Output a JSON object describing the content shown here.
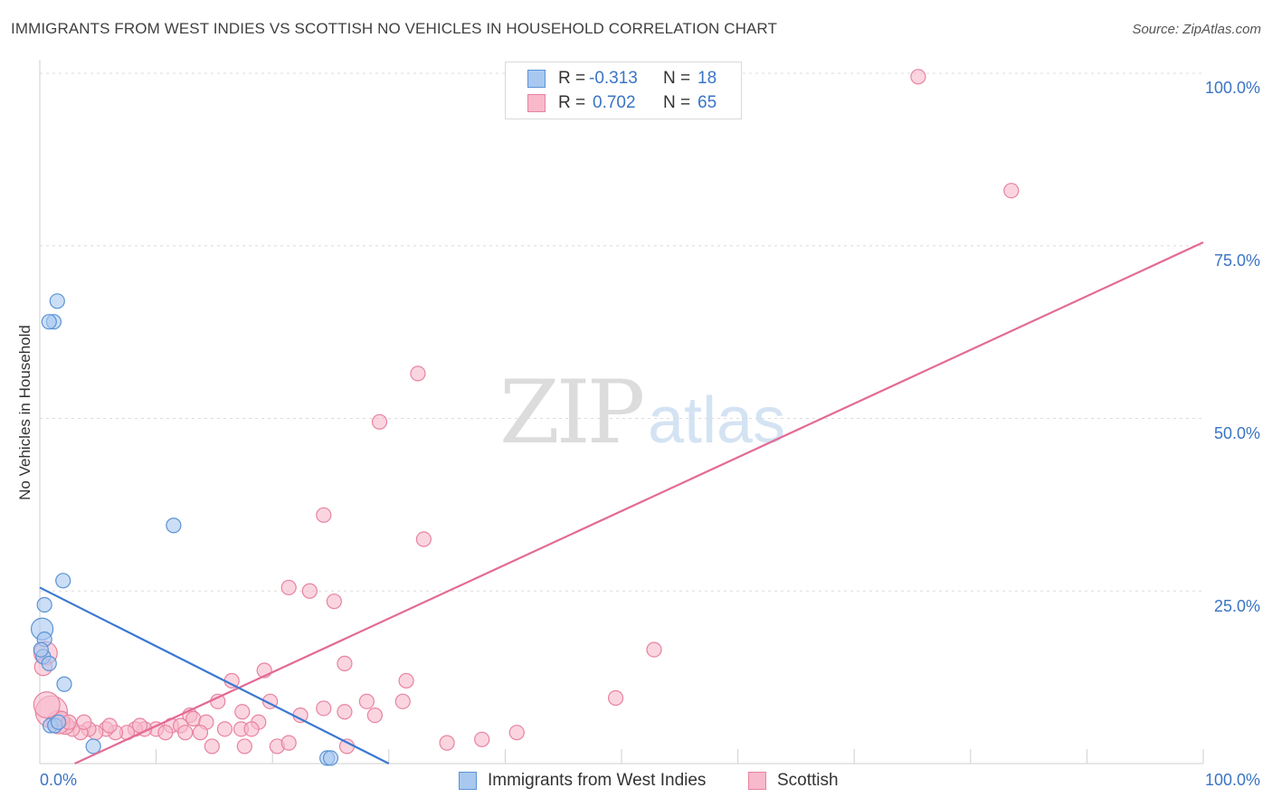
{
  "title": "IMMIGRANTS FROM WEST INDIES VS SCOTTISH NO VEHICLES IN HOUSEHOLD CORRELATION CHART",
  "source": "Source: ZipAtlas.com",
  "watermark": {
    "zip": "ZIP",
    "atlas": "atlas"
  },
  "colors": {
    "blue_fill": "#a8c8f0",
    "blue_stroke": "#5b93d6",
    "blue_line": "#3a78d0",
    "pink_fill": "#f7b9cb",
    "pink_stroke": "#e8829f",
    "pink_line": "#e36a95",
    "grid": "#dcdcdc",
    "axis_text": "#3a74c4"
  },
  "legend_top": {
    "rows": [
      {
        "r_label": "R =",
        "r_value": "-0.313",
        "n_label": "N =",
        "n_value": "18"
      },
      {
        "r_label": "R =",
        "r_value": "0.702",
        "n_label": "N =",
        "n_value": "65"
      }
    ]
  },
  "legend_bottom": [
    "Immigrants from West Indies",
    "Scottish"
  ],
  "chart_data": {
    "type": "scatter",
    "title": "IMMIGRANTS FROM WEST INDIES VS SCOTTISH NO VEHICLES IN HOUSEHOLD CORRELATION CHART",
    "xlabel": "",
    "ylabel": "No Vehicles in Household",
    "xlim": [
      0,
      100
    ],
    "ylim": [
      0,
      100
    ],
    "x_tick_labels": [
      "0.0%",
      "100.0%"
    ],
    "y_tick_labels": [
      "100.0%",
      "75.0%",
      "50.0%",
      "25.0%"
    ],
    "y_tick_values": [
      100,
      75,
      50,
      25
    ],
    "series": [
      {
        "name": "Immigrants from West Indies",
        "r": -0.313,
        "n": 18,
        "trend": {
          "x": [
            0,
            30
          ],
          "y": [
            25.5,
            0
          ]
        },
        "points": [
          {
            "x": 1.5,
            "y": 67,
            "s": 1
          },
          {
            "x": 1.2,
            "y": 64,
            "s": 1
          },
          {
            "x": 0.8,
            "y": 64,
            "s": 1
          },
          {
            "x": 11.5,
            "y": 34.5,
            "s": 1
          },
          {
            "x": 2.0,
            "y": 26.5,
            "s": 1
          },
          {
            "x": 0.4,
            "y": 23,
            "s": 1
          },
          {
            "x": 0.2,
            "y": 19.5,
            "s": 1.5
          },
          {
            "x": 0.4,
            "y": 18,
            "s": 1
          },
          {
            "x": 0.3,
            "y": 15.5,
            "s": 1
          },
          {
            "x": 0.8,
            "y": 14.5,
            "s": 1
          },
          {
            "x": 2.1,
            "y": 11.5,
            "s": 1
          },
          {
            "x": 0.9,
            "y": 5.5,
            "s": 1
          },
          {
            "x": 1.3,
            "y": 5.5,
            "s": 1
          },
          {
            "x": 1.6,
            "y": 6.0,
            "s": 1
          },
          {
            "x": 4.6,
            "y": 2.5,
            "s": 1
          },
          {
            "x": 24.7,
            "y": 0.8,
            "s": 1
          },
          {
            "x": 25.0,
            "y": 0.8,
            "s": 1
          },
          {
            "x": 0.1,
            "y": 16.5,
            "s": 1
          }
        ]
      },
      {
        "name": "Scottish",
        "r": 0.702,
        "n": 65,
        "trend": {
          "x": [
            3,
            100
          ],
          "y": [
            0,
            75.5
          ]
        },
        "points": [
          {
            "x": 75.5,
            "y": 99.5,
            "s": 1
          },
          {
            "x": 83.5,
            "y": 83,
            "s": 1
          },
          {
            "x": 32.5,
            "y": 56.5,
            "s": 1
          },
          {
            "x": 29.2,
            "y": 49.5,
            "s": 1
          },
          {
            "x": 24.4,
            "y": 36,
            "s": 1
          },
          {
            "x": 33,
            "y": 32.5,
            "s": 1
          },
          {
            "x": 21.4,
            "y": 25.5,
            "s": 1
          },
          {
            "x": 23.2,
            "y": 25,
            "s": 1
          },
          {
            "x": 25.3,
            "y": 23.5,
            "s": 1
          },
          {
            "x": 52.8,
            "y": 16.5,
            "s": 1
          },
          {
            "x": 26.2,
            "y": 14.5,
            "s": 1
          },
          {
            "x": 19.3,
            "y": 13.5,
            "s": 1
          },
          {
            "x": 16.5,
            "y": 12,
            "s": 1
          },
          {
            "x": 31.5,
            "y": 12,
            "s": 1
          },
          {
            "x": 49.5,
            "y": 9.5,
            "s": 1
          },
          {
            "x": 15.3,
            "y": 9,
            "s": 1
          },
          {
            "x": 19.8,
            "y": 9,
            "s": 1
          },
          {
            "x": 28.1,
            "y": 9,
            "s": 1
          },
          {
            "x": 31.2,
            "y": 9,
            "s": 1
          },
          {
            "x": 24.4,
            "y": 8,
            "s": 1
          },
          {
            "x": 26.2,
            "y": 7.5,
            "s": 1
          },
          {
            "x": 17.4,
            "y": 7.5,
            "s": 1
          },
          {
            "x": 22.4,
            "y": 7,
            "s": 1
          },
          {
            "x": 28.8,
            "y": 7,
            "s": 1
          },
          {
            "x": 12.9,
            "y": 7,
            "s": 1
          },
          {
            "x": 13.2,
            "y": 6.5,
            "s": 1
          },
          {
            "x": 14.3,
            "y": 6,
            "s": 1
          },
          {
            "x": 18.8,
            "y": 6,
            "s": 1
          },
          {
            "x": 11.3,
            "y": 5.5,
            "s": 1
          },
          {
            "x": 12.1,
            "y": 5.5,
            "s": 1
          },
          {
            "x": 15.9,
            "y": 5,
            "s": 1
          },
          {
            "x": 17.3,
            "y": 5,
            "s": 1
          },
          {
            "x": 18.2,
            "y": 5,
            "s": 1
          },
          {
            "x": 13.8,
            "y": 4.5,
            "s": 1
          },
          {
            "x": 10.0,
            "y": 5,
            "s": 1
          },
          {
            "x": 9.0,
            "y": 5,
            "s": 1
          },
          {
            "x": 8.2,
            "y": 5,
            "s": 1
          },
          {
            "x": 7.5,
            "y": 4.5,
            "s": 1
          },
          {
            "x": 6.5,
            "y": 4.5,
            "s": 1
          },
          {
            "x": 5.7,
            "y": 5,
            "s": 1
          },
          {
            "x": 4.8,
            "y": 4.5,
            "s": 1
          },
          {
            "x": 4.2,
            "y": 5,
            "s": 1
          },
          {
            "x": 3.5,
            "y": 4.5,
            "s": 1
          },
          {
            "x": 2.8,
            "y": 5,
            "s": 1
          },
          {
            "x": 2.2,
            "y": 5.5,
            "s": 1.2
          },
          {
            "x": 1.6,
            "y": 6,
            "s": 1.6
          },
          {
            "x": 1.0,
            "y": 7.5,
            "s": 2.2
          },
          {
            "x": 0.6,
            "y": 8.5,
            "s": 1.8
          },
          {
            "x": 0.5,
            "y": 16,
            "s": 1.6
          },
          {
            "x": 0.3,
            "y": 14,
            "s": 1.2
          },
          {
            "x": 20.4,
            "y": 2.5,
            "s": 1
          },
          {
            "x": 26.4,
            "y": 2.5,
            "s": 1
          },
          {
            "x": 21.4,
            "y": 3,
            "s": 1
          },
          {
            "x": 14.8,
            "y": 2.5,
            "s": 1
          },
          {
            "x": 17.6,
            "y": 2.5,
            "s": 1
          },
          {
            "x": 35.0,
            "y": 3,
            "s": 1
          },
          {
            "x": 38.0,
            "y": 3.5,
            "s": 1
          },
          {
            "x": 41.0,
            "y": 4.5,
            "s": 1
          },
          {
            "x": 8.6,
            "y": 5.5,
            "s": 1
          },
          {
            "x": 10.8,
            "y": 4.5,
            "s": 1
          },
          {
            "x": 6.0,
            "y": 5.5,
            "s": 1
          },
          {
            "x": 3.8,
            "y": 6,
            "s": 1
          },
          {
            "x": 12.5,
            "y": 4.5,
            "s": 1
          },
          {
            "x": 1.9,
            "y": 6.5,
            "s": 1
          },
          {
            "x": 2.5,
            "y": 6,
            "s": 1
          }
        ]
      }
    ]
  }
}
